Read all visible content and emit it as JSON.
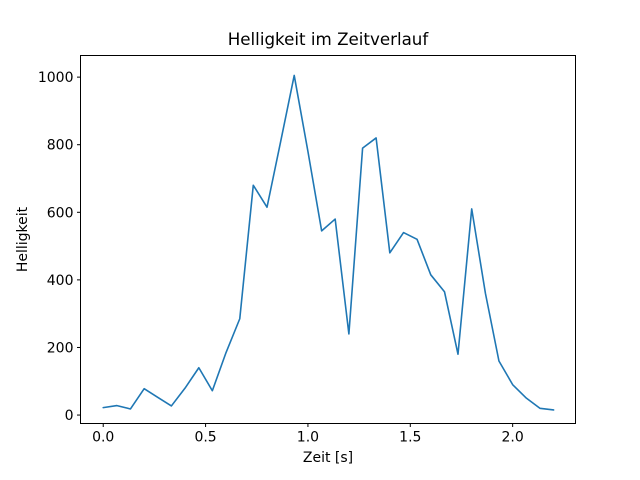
{
  "chart": {
    "title": "Helligkeit im Zeitverlauf",
    "xlabel": "Zeit [s]",
    "ylabel": "Helligkeit"
  },
  "chart_data": {
    "type": "line",
    "title": "Helligkeit im Zeitverlauf",
    "xlabel": "Zeit [s]",
    "ylabel": "Helligkeit",
    "line_color": "#1f77b4",
    "grid": false,
    "legend": null,
    "xlim": [
      -0.111,
      2.307
    ],
    "ylim": [
      -25,
      1064
    ],
    "x_ticks": [
      0.0,
      0.5,
      1.0,
      1.5,
      2.0
    ],
    "x_tick_labels": [
      "0.0",
      "0.5",
      "1.0",
      "1.5",
      "2.0"
    ],
    "y_ticks": [
      0,
      200,
      400,
      600,
      800,
      1000
    ],
    "y_tick_labels": [
      "0",
      "200",
      "400",
      "600",
      "800",
      "1000"
    ],
    "x": [
      0.0,
      0.067,
      0.133,
      0.2,
      0.267,
      0.333,
      0.4,
      0.467,
      0.533,
      0.6,
      0.667,
      0.733,
      0.8,
      0.867,
      0.933,
      1.0,
      1.067,
      1.133,
      1.2,
      1.267,
      1.333,
      1.4,
      1.467,
      1.533,
      1.6,
      1.667,
      1.733,
      1.8,
      1.867,
      1.933,
      2.0,
      2.067,
      2.133,
      2.2
    ],
    "y": [
      22,
      28,
      18,
      78,
      52,
      27,
      80,
      140,
      72,
      185,
      285,
      680,
      615,
      810,
      1005,
      780,
      545,
      580,
      240,
      790,
      820,
      480,
      540,
      520,
      415,
      365,
      180,
      610,
      360,
      160,
      90,
      50,
      20,
      15
    ]
  }
}
